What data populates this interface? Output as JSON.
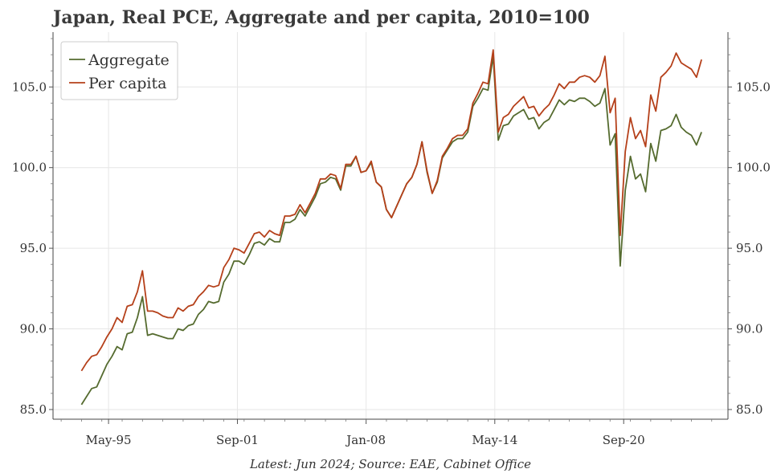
{
  "chart_data": {
    "type": "line",
    "title": "Japan, Real PCE, Aggregate and per capita, 2010=100",
    "source": "Latest: Jun 2024; Source: EAE, Cabinet Office",
    "xlabel": "",
    "ylabel": "",
    "x_start": 1994.0,
    "x_end": 2024.5,
    "xlim": [
      1992.6,
      2025.8
    ],
    "ylim": [
      84.4,
      108.4
    ],
    "yticks": [
      85,
      90,
      95,
      100,
      105
    ],
    "ytick_labels": [
      "85.0",
      "90.0",
      "95.0",
      "100.0",
      "105.0"
    ],
    "xticks": [
      {
        "label": "May-95",
        "value": 1995.33
      },
      {
        "label": "Sep-01",
        "value": 2001.67
      },
      {
        "label": "Jan-08",
        "value": 2008.0
      },
      {
        "label": "May-14",
        "value": 2014.33
      },
      {
        "label": "Sep-20",
        "value": 2020.67
      }
    ],
    "grid": true,
    "legend_position": "top-left",
    "series": [
      {
        "name": "Aggregate",
        "color": "#556b2f",
        "values": [
          85.3,
          85.8,
          86.3,
          86.4,
          87.1,
          87.8,
          88.3,
          88.9,
          88.7,
          89.7,
          89.8,
          90.7,
          92.0,
          89.6,
          89.7,
          89.6,
          89.5,
          89.4,
          89.4,
          90.0,
          89.9,
          90.2,
          90.3,
          90.9,
          91.2,
          91.7,
          91.6,
          91.7,
          92.9,
          93.4,
          94.2,
          94.2,
          94.0,
          94.6,
          95.3,
          95.4,
          95.2,
          95.6,
          95.4,
          95.4,
          96.6,
          96.6,
          96.8,
          97.4,
          97.0,
          97.6,
          98.2,
          99.0,
          99.1,
          99.4,
          99.3,
          98.6,
          100.1,
          100.1,
          100.7,
          99.7,
          99.8,
          100.3,
          99.1,
          98.8,
          97.4,
          96.9,
          97.6,
          98.3,
          99.0,
          99.4,
          100.2,
          101.6,
          99.7,
          98.4,
          99.1,
          100.6,
          101.1,
          101.6,
          101.8,
          101.8,
          102.2,
          103.8,
          104.3,
          104.9,
          104.8,
          106.9,
          101.7,
          102.6,
          102.7,
          103.2,
          103.4,
          103.6,
          103.0,
          103.1,
          102.4,
          102.8,
          103.0,
          103.6,
          104.2,
          103.9,
          104.2,
          104.1,
          104.3,
          104.3,
          104.1,
          103.8,
          104.0,
          104.9,
          101.4,
          102.1,
          93.9,
          98.6,
          100.7,
          99.3,
          99.6,
          98.5,
          101.5,
          100.4,
          102.3,
          102.4,
          102.6,
          103.3,
          102.5,
          102.2,
          102.0,
          101.4,
          102.2
        ]
      },
      {
        "name": "Per capita",
        "color": "#b5401a",
        "values": [
          87.4,
          87.9,
          88.3,
          88.4,
          88.9,
          89.5,
          90.0,
          90.7,
          90.4,
          91.4,
          91.5,
          92.3,
          93.6,
          91.1,
          91.1,
          91.0,
          90.8,
          90.7,
          90.7,
          91.3,
          91.1,
          91.4,
          91.5,
          92.0,
          92.3,
          92.7,
          92.6,
          92.7,
          93.8,
          94.3,
          95.0,
          94.9,
          94.7,
          95.3,
          95.9,
          96.0,
          95.7,
          96.1,
          95.9,
          95.8,
          97.0,
          97.0,
          97.1,
          97.7,
          97.2,
          97.8,
          98.4,
          99.3,
          99.3,
          99.6,
          99.5,
          98.7,
          100.2,
          100.2,
          100.7,
          99.7,
          99.8,
          100.4,
          99.1,
          98.8,
          97.4,
          96.9,
          97.6,
          98.3,
          99.0,
          99.4,
          100.2,
          101.6,
          99.8,
          98.4,
          99.2,
          100.7,
          101.2,
          101.8,
          102.0,
          102.0,
          102.4,
          104.0,
          104.6,
          105.3,
          105.2,
          107.3,
          102.2,
          103.1,
          103.3,
          103.8,
          104.1,
          104.4,
          103.7,
          103.8,
          103.2,
          103.6,
          103.9,
          104.5,
          105.2,
          104.9,
          105.3,
          105.3,
          105.6,
          105.7,
          105.6,
          105.3,
          105.7,
          106.9,
          103.4,
          104.3,
          95.8,
          101.0,
          103.1,
          101.8,
          102.3,
          101.3,
          104.5,
          103.5,
          105.6,
          105.9,
          106.3,
          107.1,
          106.5,
          106.3,
          106.1,
          105.6,
          106.7
        ]
      }
    ]
  }
}
